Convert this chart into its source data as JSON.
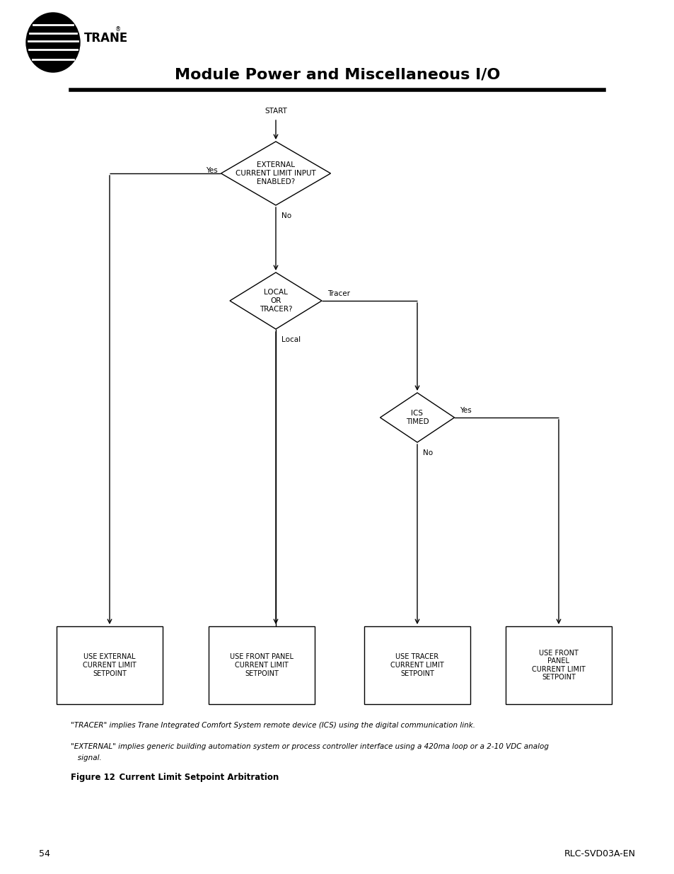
{
  "title": "Module Power and Miscellaneous I/O",
  "page_num": "54",
  "page_code": "RLC-SVD03A-EN",
  "bg_color": "#ffffff",
  "start_label": "START",
  "diamond1_label": "EXTERNAL\nCURRENT LIMIT INPUT\nENABLED?",
  "diamond2_label": "LOCAL\nOR\nTRACER?",
  "diamond3_label": "ICS\nTIMED",
  "box1_label": "USE EXTERNAL\nCURRENT LIMIT\nSETPOINT",
  "box2_label": "USE FRONT PANEL\nCURRENT LIMIT\nSETPOINT",
  "box3_label": "USE TRACER\nCURRENT LIMIT\nSETPOINT",
  "box4_label": "USE FRONT\nPANEL\nCURRENT LIMIT\nSETPOINT",
  "note1": "\"TRACER\" implies Trane Integrated Comfort System remote device (ICS) using the digital communication link.",
  "note2": "\"EXTERNAL\" implies generic building automation system or process controller interface using a 420ma loop or a 2-10 VDC analog",
  "note2b": "   signal.",
  "fig_label": "Figure 12",
  "fig_label2": "    Current Limit Setpoint Arbitration",
  "label_yes1": "Yes",
  "label_no1": "No",
  "label_tracer": "Tracer",
  "label_local": "Local",
  "label_yes3": "Yes",
  "label_no3": "No"
}
